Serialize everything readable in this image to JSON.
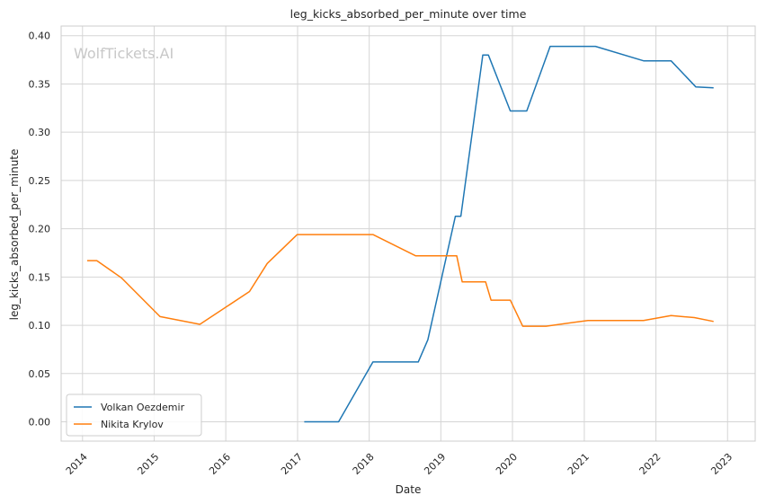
{
  "chart_data": {
    "type": "line",
    "title": "leg_kicks_absorbed_per_minute over time",
    "xlabel": "Date",
    "ylabel": "leg_kicks_absorbed_per_minute",
    "watermark": "WolfTickets.AI",
    "x_ticks": [
      "2014",
      "2015",
      "2016",
      "2017",
      "2018",
      "2019",
      "2020",
      "2021",
      "2022",
      "2023"
    ],
    "y_ticks": [
      "0.00",
      "0.05",
      "0.10",
      "0.15",
      "0.20",
      "0.25",
      "0.30",
      "0.35",
      "0.40"
    ],
    "xlim": [
      "2013-09-14",
      "2023-05-22"
    ],
    "ylim": [
      -0.02,
      0.41
    ],
    "grid": true,
    "legend_position": "lower-left",
    "series": [
      {
        "name": "Volkan Oezdemir",
        "color": "#1f77b4",
        "points": [
          [
            "2017-02-04",
            0.0
          ],
          [
            "2017-07-29",
            0.0
          ],
          [
            "2018-01-20",
            0.062
          ],
          [
            "2018-09-08",
            0.062
          ],
          [
            "2018-10-27",
            0.085
          ],
          [
            "2019-03-16",
            0.213
          ],
          [
            "2019-04-13",
            0.213
          ],
          [
            "2019-08-03",
            0.38
          ],
          [
            "2019-08-31",
            0.38
          ],
          [
            "2019-12-21",
            0.322
          ],
          [
            "2020-03-14",
            0.322
          ],
          [
            "2020-07-11",
            0.389
          ],
          [
            "2021-02-27",
            0.389
          ],
          [
            "2021-10-30",
            0.374
          ],
          [
            "2022-03-19",
            0.374
          ],
          [
            "2022-07-23",
            0.347
          ],
          [
            "2022-10-22",
            0.346
          ]
        ]
      },
      {
        "name": "Nikita Krylov",
        "color": "#ff7f0e",
        "points": [
          [
            "2014-01-25",
            0.167
          ],
          [
            "2014-03-15",
            0.167
          ],
          [
            "2014-07-19",
            0.149
          ],
          [
            "2015-01-31",
            0.109
          ],
          [
            "2015-08-22",
            0.101
          ],
          [
            "2016-05-01",
            0.135
          ],
          [
            "2016-07-30",
            0.164
          ],
          [
            "2016-12-30",
            0.194
          ],
          [
            "2018-01-20",
            0.194
          ],
          [
            "2018-08-25",
            0.172
          ],
          [
            "2019-03-23",
            0.172
          ],
          [
            "2019-04-20",
            0.145
          ],
          [
            "2019-08-17",
            0.145
          ],
          [
            "2019-09-14",
            0.126
          ],
          [
            "2019-12-21",
            0.126
          ],
          [
            "2020-02-22",
            0.099
          ],
          [
            "2020-06-20",
            0.099
          ],
          [
            "2021-01-20",
            0.105
          ],
          [
            "2021-10-30",
            0.105
          ],
          [
            "2022-03-19",
            0.11
          ],
          [
            "2022-07-16",
            0.108
          ],
          [
            "2022-10-22",
            0.104
          ]
        ]
      }
    ]
  }
}
